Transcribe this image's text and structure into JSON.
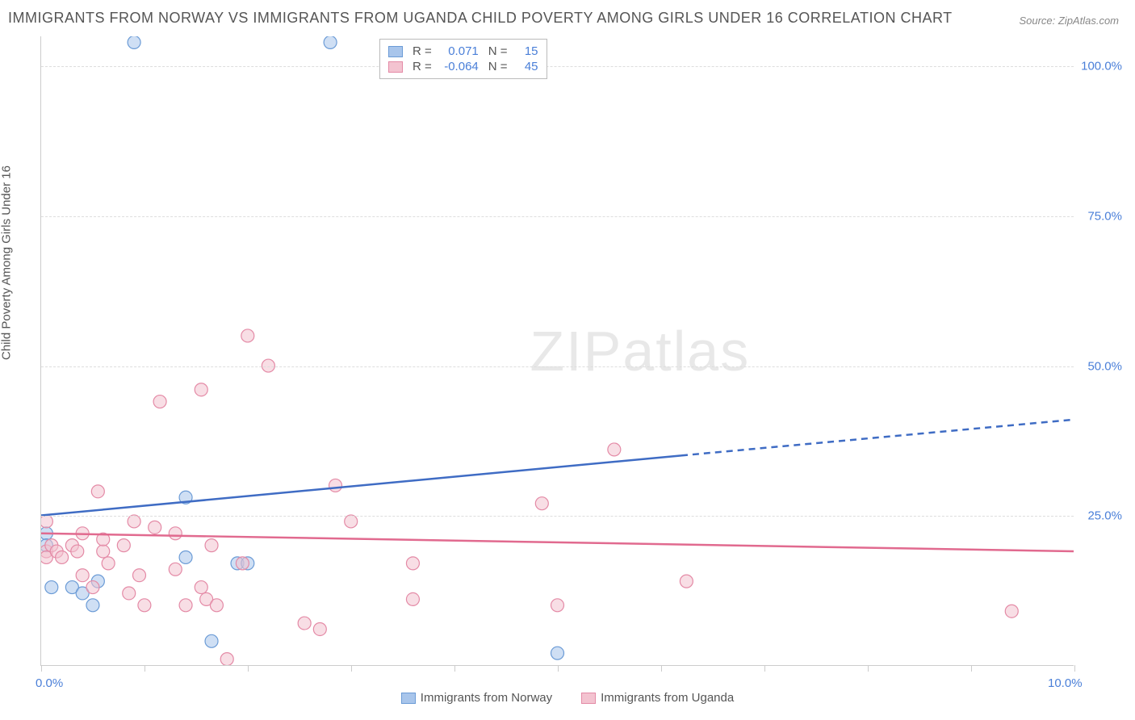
{
  "title": "IMMIGRANTS FROM NORWAY VS IMMIGRANTS FROM UGANDA CHILD POVERTY AMONG GIRLS UNDER 16 CORRELATION CHART",
  "source": "Source: ZipAtlas.com",
  "y_axis_label": "Child Poverty Among Girls Under 16",
  "watermark_a": "ZIP",
  "watermark_b": "atlas",
  "chart": {
    "type": "scatter",
    "xlim": [
      0,
      10
    ],
    "ylim": [
      0,
      105
    ],
    "x_ticks": [
      0,
      1,
      2,
      3,
      4,
      5,
      6,
      7,
      8,
      9,
      10
    ],
    "x_tick_labels_min": "0.0%",
    "x_tick_labels_max": "10.0%",
    "y_grid": [
      25,
      50,
      75,
      100
    ],
    "y_tick_labels": [
      "25.0%",
      "50.0%",
      "75.0%",
      "100.0%"
    ],
    "background_color": "#ffffff",
    "grid_color": "#dddddd",
    "axis_color": "#cccccc",
    "text_color": "#555555",
    "tick_label_color": "#4a7fd8",
    "series": [
      {
        "name": "Immigrants from Norway",
        "marker_color": "#a8c5eb",
        "marker_stroke": "#6b9bd6",
        "marker_radius": 8,
        "marker_opacity": 0.55,
        "line_color": "#3f6cc4",
        "line_width": 2.5,
        "trend_solid": {
          "x1": 0,
          "y1": 25,
          "x2": 6.2,
          "y2": 35
        },
        "trend_dash": {
          "x1": 6.2,
          "y1": 35,
          "x2": 10,
          "y2": 41
        },
        "points": [
          [
            0.05,
            22
          ],
          [
            0.05,
            20
          ],
          [
            0.1,
            13
          ],
          [
            0.3,
            13
          ],
          [
            0.4,
            12
          ],
          [
            0.5,
            10
          ],
          [
            0.55,
            14
          ],
          [
            0.9,
            104
          ],
          [
            1.4,
            28
          ],
          [
            1.4,
            18
          ],
          [
            1.65,
            4
          ],
          [
            1.9,
            17
          ],
          [
            2.0,
            17
          ],
          [
            2.8,
            104
          ],
          [
            5.0,
            2
          ]
        ]
      },
      {
        "name": "Immigrants from Uganda",
        "marker_color": "#f3c3d0",
        "marker_stroke": "#e48aa6",
        "marker_radius": 8,
        "marker_opacity": 0.55,
        "line_color": "#e16a8f",
        "line_width": 2.5,
        "trend_solid": {
          "x1": 0,
          "y1": 22,
          "x2": 10,
          "y2": 19
        },
        "points": [
          [
            0.05,
            24
          ],
          [
            0.05,
            19
          ],
          [
            0.05,
            18
          ],
          [
            0.1,
            20
          ],
          [
            0.15,
            19
          ],
          [
            0.2,
            18
          ],
          [
            0.3,
            20
          ],
          [
            0.35,
            19
          ],
          [
            0.4,
            15
          ],
          [
            0.4,
            22
          ],
          [
            0.5,
            13
          ],
          [
            0.55,
            29
          ],
          [
            0.6,
            19
          ],
          [
            0.6,
            21
          ],
          [
            0.65,
            17
          ],
          [
            0.8,
            20
          ],
          [
            0.85,
            12
          ],
          [
            0.9,
            24
          ],
          [
            0.95,
            15
          ],
          [
            1.0,
            10
          ],
          [
            1.1,
            23
          ],
          [
            1.15,
            44
          ],
          [
            1.3,
            22
          ],
          [
            1.3,
            16
          ],
          [
            1.4,
            10
          ],
          [
            1.55,
            46
          ],
          [
            1.55,
            13
          ],
          [
            1.6,
            11
          ],
          [
            1.65,
            20
          ],
          [
            1.7,
            10
          ],
          [
            1.8,
            1
          ],
          [
            1.95,
            17
          ],
          [
            2.0,
            55
          ],
          [
            2.2,
            50
          ],
          [
            2.55,
            7
          ],
          [
            2.7,
            6
          ],
          [
            2.85,
            30
          ],
          [
            3.0,
            24
          ],
          [
            3.6,
            17
          ],
          [
            3.6,
            11
          ],
          [
            4.85,
            27
          ],
          [
            5.0,
            10
          ],
          [
            5.55,
            36
          ],
          [
            6.25,
            14
          ],
          [
            9.4,
            9
          ]
        ]
      }
    ],
    "stats": [
      {
        "series_idx": 0,
        "R": "0.071",
        "N": "15"
      },
      {
        "series_idx": 1,
        "R": "-0.064",
        "N": "45"
      }
    ],
    "stats_labels": {
      "R": "R =",
      "N": "N ="
    }
  }
}
